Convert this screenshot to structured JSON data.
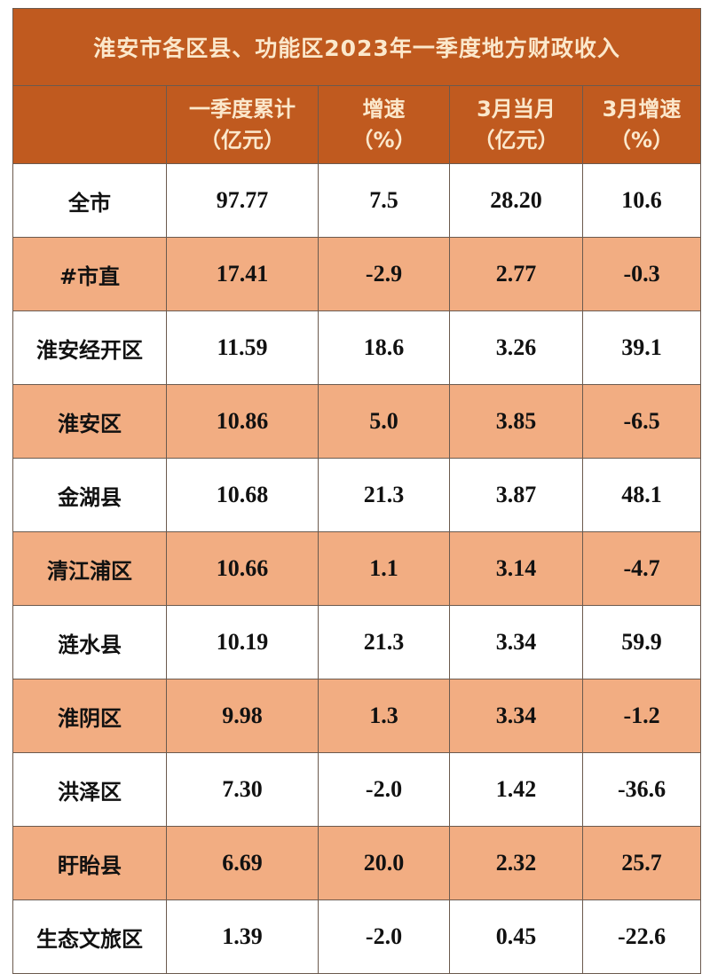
{
  "title": "淮安市各区县、功能区2023年一季度地方财政收入",
  "headers": [
    {
      "line1": "",
      "line2": ""
    },
    {
      "line1": "一季度累计",
      "line2": "（亿元）"
    },
    {
      "line1": "增速",
      "line2": "（%）"
    },
    {
      "line1": "3月当月",
      "line2": "（亿元）"
    },
    {
      "line1": "3月增速",
      "line2": "（%）"
    }
  ],
  "rows": [
    [
      "全市",
      "97.77",
      "7.5",
      "28.20",
      "10.6"
    ],
    [
      "#市直",
      "17.41",
      "-2.9",
      "2.77",
      "-0.3"
    ],
    [
      "淮安经开区",
      "11.59",
      "18.6",
      "3.26",
      "39.1"
    ],
    [
      "淮安区",
      "10.86",
      "5.0",
      "3.85",
      "-6.5"
    ],
    [
      "金湖县",
      "10.68",
      "21.3",
      "3.87",
      "48.1"
    ],
    [
      "清江浦区",
      "10.66",
      "1.1",
      "3.14",
      "-4.7"
    ],
    [
      "涟水县",
      "10.19",
      "21.3",
      "3.34",
      "59.9"
    ],
    [
      "淮阴区",
      "9.98",
      "1.3",
      "3.34",
      "-1.2"
    ],
    [
      "洪泽区",
      "7.30",
      "-2.0",
      "1.42",
      "-36.6"
    ],
    [
      "盱眙县",
      "6.69",
      "20.0",
      "2.32",
      "25.7"
    ],
    [
      "生态文旅区",
      "1.39",
      "-2.0",
      "0.45",
      "-22.6"
    ]
  ],
  "colors": {
    "header_bg": "#C05A1F",
    "header_text": "#FBE8CC",
    "stripe": "#F2AD82"
  }
}
